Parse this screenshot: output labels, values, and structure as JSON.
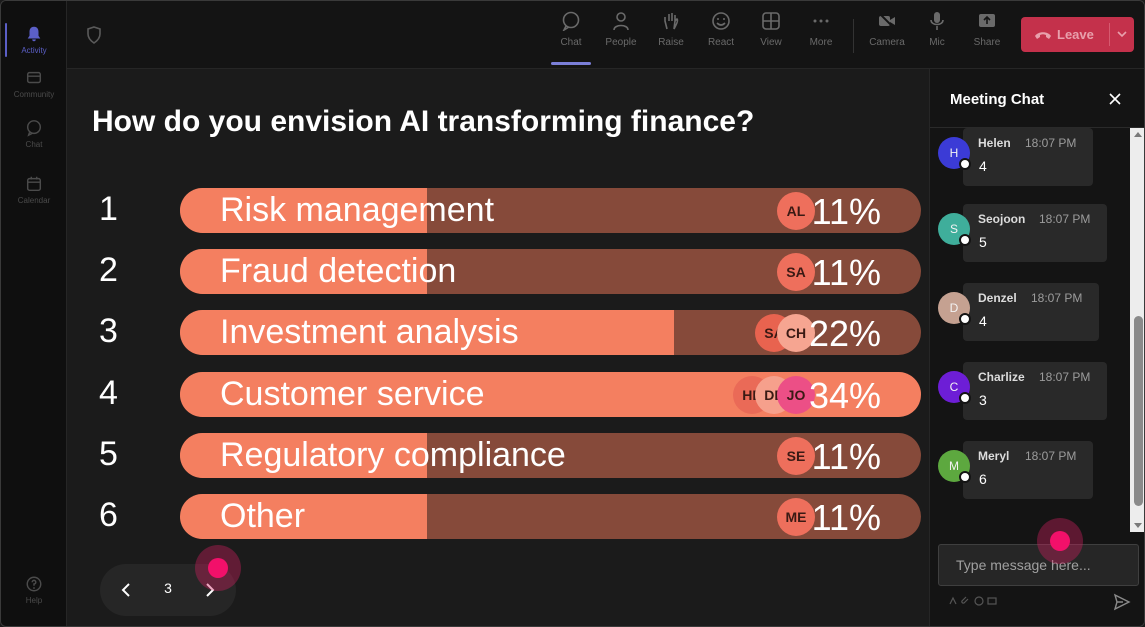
{
  "rail": [
    {
      "label": "Activity",
      "icon": "bell-icon",
      "active": true
    },
    {
      "label": "Community",
      "icon": "community-icon",
      "active": false
    },
    {
      "label": "Chat",
      "icon": "chat-icon",
      "active": false
    },
    {
      "label": "Calendar",
      "icon": "calendar-icon",
      "active": false
    },
    {
      "label": "Help",
      "icon": "help-icon",
      "active": false
    }
  ],
  "toolbar": {
    "buttons": [
      {
        "label": "Chat",
        "icon": "chat-icon",
        "active": true
      },
      {
        "label": "People",
        "icon": "people-icon",
        "active": false
      },
      {
        "label": "Raise",
        "icon": "raise-hand-icon",
        "active": false
      },
      {
        "label": "React",
        "icon": "react-icon",
        "active": false
      },
      {
        "label": "View",
        "icon": "view-icon",
        "active": false
      },
      {
        "label": "More",
        "icon": "more-icon",
        "active": false
      },
      {
        "label": "Camera",
        "icon": "camera-off-icon",
        "active": false
      },
      {
        "label": "Mic",
        "icon": "mic-icon",
        "active": false
      },
      {
        "label": "Share",
        "icon": "share-icon",
        "active": false
      }
    ],
    "leave_label": "Leave"
  },
  "poll": {
    "question": "How do you envision AI transforming finance?",
    "options": [
      {
        "num": "1",
        "label": "Risk management",
        "percent": "11%",
        "fill": 0.333,
        "avatars": [
          {
            "initials": "AL",
            "color": "#ee6f5c"
          }
        ]
      },
      {
        "num": "2",
        "label": "Fraud detection",
        "percent": "11%",
        "fill": 0.333,
        "avatars": [
          {
            "initials": "SA",
            "color": "#ee6f5c"
          }
        ]
      },
      {
        "num": "3",
        "label": "Investment analysis",
        "percent": "22%",
        "fill": 0.667,
        "avatars": [
          {
            "initials": "SA",
            "color": "#e8634f"
          },
          {
            "initials": "CH",
            "color": "#f6a591"
          }
        ]
      },
      {
        "num": "4",
        "label": "Customer service",
        "percent": "34%",
        "fill": 1.0,
        "avatars": [
          {
            "initials": "HE",
            "color": "#ea6a57"
          },
          {
            "initials": "DE",
            "color": "#f6a08c"
          },
          {
            "initials": "JO",
            "color": "#ec4f86"
          }
        ]
      },
      {
        "num": "5",
        "label": "Regulatory compliance",
        "percent": "11%",
        "fill": 0.333,
        "avatars": [
          {
            "initials": "SE",
            "color": "#ee6f5c"
          }
        ]
      },
      {
        "num": "6",
        "label": "Other",
        "percent": "11%",
        "fill": 0.333,
        "avatars": [
          {
            "initials": "ME",
            "color": "#ee6f5c"
          }
        ]
      }
    ],
    "pager": {
      "page": "3"
    }
  },
  "chat": {
    "title": "Meeting Chat",
    "messages": [
      {
        "initial": "H",
        "name": "Helen",
        "time": "18:07 PM",
        "text": "4",
        "color": "#3b3bd6"
      },
      {
        "initial": "S",
        "name": "Seojoon",
        "time": "18:07 PM",
        "text": "5",
        "color": "#3fae9b"
      },
      {
        "initial": "D",
        "name": "Denzel",
        "time": "18:07 PM",
        "text": "4",
        "color": "#c5a191"
      },
      {
        "initial": "C",
        "name": "Charlize",
        "time": "18:07 PM",
        "text": "3",
        "color": "#6d1ed6"
      },
      {
        "initial": "M",
        "name": "Meryl",
        "time": "18:07 PM",
        "text": "6",
        "color": "#5da83f"
      }
    ],
    "compose_placeholder": "Type message here..."
  }
}
